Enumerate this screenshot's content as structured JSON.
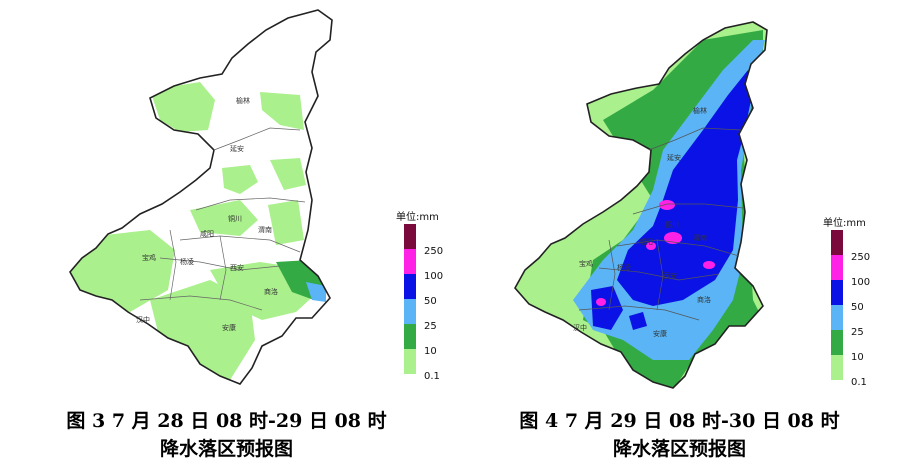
{
  "legend": {
    "unit": "单位:mm",
    "levels": [
      {
        "label": "250",
        "color": "#7b0a3c"
      },
      {
        "label": "100",
        "color": "#ff22e6"
      },
      {
        "label": "50",
        "color": "#0a12e6"
      },
      {
        "label": "25",
        "color": "#5ab4f5"
      },
      {
        "label": "10",
        "color": "#33aa44"
      },
      {
        "label": "0.1",
        "color": "#aaf08c"
      }
    ]
  },
  "cities": [
    "榆林",
    "延安",
    "铜川",
    "渭南",
    "咸阳",
    "西安",
    "宝鸡",
    "杨凌",
    "商洛",
    "汉中",
    "安康"
  ],
  "maps": [
    {
      "caption_line1": "图 3  7 月 28 日 08 时-29 日 08 时",
      "caption_line2": "降水落区预报图"
    },
    {
      "caption_line1": "图 4  7 月 29 日 08 时-30 日 08 时",
      "caption_line2": "降水落区预报图"
    }
  ]
}
